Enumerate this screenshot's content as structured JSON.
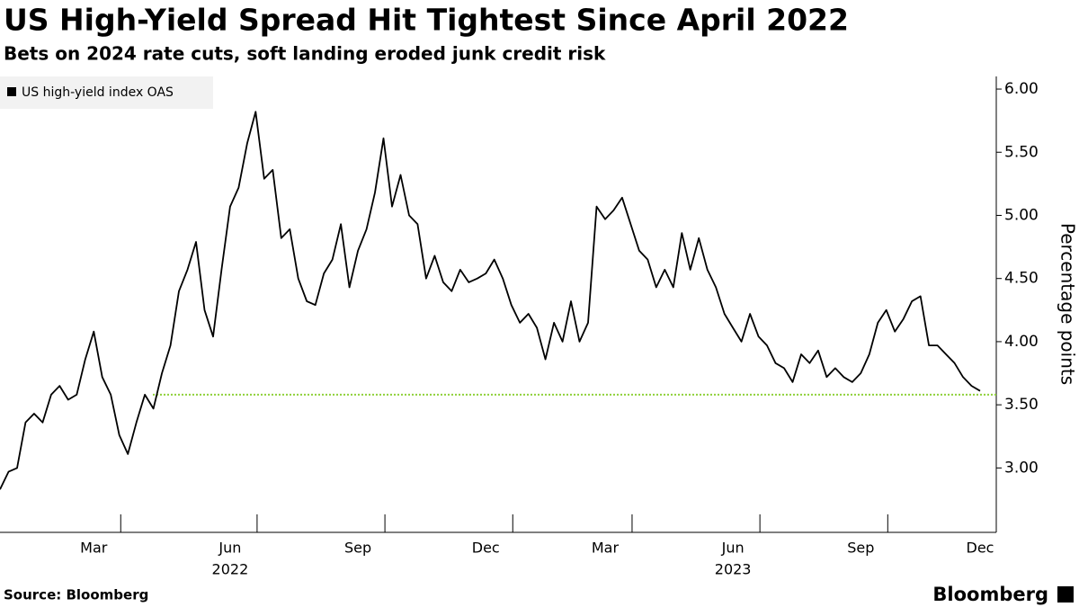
{
  "chart_data": {
    "type": "line",
    "title": "US High-Yield Spread Hit Tightest Since April 2022",
    "subtitle": "Bets on 2024 rate cuts, soft landing eroded junk credit risk",
    "y_axis_label": "Percentage points",
    "source": "Source: Bloomberg",
    "logo": "Bloomberg",
    "legend_position": "top-left",
    "categories": [
      null,
      null,
      null,
      null,
      null,
      null,
      null,
      null,
      null,
      null,
      null,
      "Mar",
      null,
      null,
      null,
      null,
      null,
      null,
      null,
      null,
      null,
      null,
      null,
      null,
      null,
      null,
      null,
      "Jun",
      null,
      null,
      null,
      null,
      null,
      null,
      null,
      null,
      null,
      null,
      null,
      null,
      null,
      null,
      "Sep",
      null,
      null,
      null,
      null,
      null,
      null,
      null,
      null,
      null,
      null,
      null,
      null,
      null,
      null,
      "Dec",
      null,
      null,
      null,
      null,
      null,
      null,
      null,
      null,
      null,
      null,
      null,
      null,
      null,
      "Mar",
      null,
      null,
      null,
      null,
      null,
      null,
      null,
      null,
      null,
      null,
      null,
      null,
      null,
      null,
      "Jun",
      null,
      null,
      null,
      null,
      null,
      null,
      null,
      null,
      null,
      null,
      null,
      null,
      null,
      null,
      "Sep",
      null,
      null,
      null,
      null,
      null,
      null,
      null,
      null,
      null,
      null,
      null,
      null,
      null,
      "Dec"
    ],
    "category_years": [
      null,
      null,
      null,
      null,
      null,
      null,
      null,
      null,
      null,
      null,
      null,
      null,
      null,
      null,
      null,
      null,
      null,
      null,
      null,
      null,
      null,
      null,
      null,
      null,
      null,
      null,
      null,
      "2022",
      null,
      null,
      null,
      null,
      null,
      null,
      null,
      null,
      null,
      null,
      null,
      null,
      null,
      null,
      null,
      null,
      null,
      null,
      null,
      null,
      null,
      null,
      null,
      null,
      null,
      null,
      null,
      null,
      null,
      null,
      null,
      null,
      null,
      null,
      null,
      null,
      null,
      null,
      null,
      null,
      null,
      null,
      null,
      null,
      null,
      null,
      null,
      null,
      null,
      null,
      null,
      null,
      null,
      null,
      null,
      null,
      null,
      null,
      "2023",
      null,
      null,
      null,
      null,
      null,
      null,
      null,
      null,
      null,
      null,
      null,
      null,
      null,
      null,
      null,
      null,
      null,
      null,
      null,
      null,
      null,
      null,
      null,
      null,
      null,
      null,
      null,
      null,
      null
    ],
    "series": [
      {
        "name": "US high-yield index OAS",
        "color": "#000000",
        "values": [
          2.83,
          2.97,
          3.0,
          3.36,
          3.43,
          3.36,
          3.58,
          3.65,
          3.54,
          3.58,
          3.86,
          4.08,
          3.72,
          3.58,
          3.26,
          3.11,
          3.36,
          3.58,
          3.47,
          3.75,
          3.97,
          4.4,
          4.57,
          4.79,
          4.25,
          4.04,
          4.57,
          5.07,
          5.22,
          5.57,
          5.82,
          5.29,
          5.36,
          4.82,
          4.89,
          4.5,
          4.32,
          4.29,
          4.54,
          4.65,
          4.93,
          4.43,
          4.72,
          4.89,
          5.18,
          5.61,
          5.07,
          5.32,
          5.0,
          4.93,
          4.5,
          4.68,
          4.47,
          4.4,
          4.57,
          4.47,
          4.5,
          4.54,
          4.65,
          4.5,
          4.29,
          4.15,
          4.22,
          4.11,
          3.86,
          4.15,
          4.0,
          4.32,
          4.0,
          4.15,
          5.07,
          4.97,
          5.04,
          5.14,
          4.93,
          4.72,
          4.65,
          4.43,
          4.57,
          4.43,
          4.86,
          4.57,
          4.82,
          4.57,
          4.43,
          4.22,
          4.11,
          4.0,
          4.22,
          4.04,
          3.97,
          3.83,
          3.79,
          3.68,
          3.9,
          3.83,
          3.93,
          3.72,
          3.79,
          3.72,
          3.68,
          3.75,
          3.9,
          4.15,
          4.25,
          4.08,
          4.18,
          4.32,
          4.36,
          3.97,
          3.97,
          3.9,
          3.83,
          3.72,
          3.65,
          3.61
        ]
      }
    ],
    "reference_line": {
      "value": 3.58,
      "color": "#8fd13a"
    },
    "ylim": [
      2.49,
      6.1
    ],
    "yticks": [
      {
        "value": 3,
        "label": "3.00"
      },
      {
        "value": 3.5,
        "label": "3.50"
      },
      {
        "value": 4,
        "label": "4.00"
      },
      {
        "value": 4.5,
        "label": "4.50"
      },
      {
        "value": 5,
        "label": "5.00"
      },
      {
        "value": 5.5,
        "label": "5.50"
      },
      {
        "value": 6,
        "label": "6.00"
      }
    ]
  }
}
